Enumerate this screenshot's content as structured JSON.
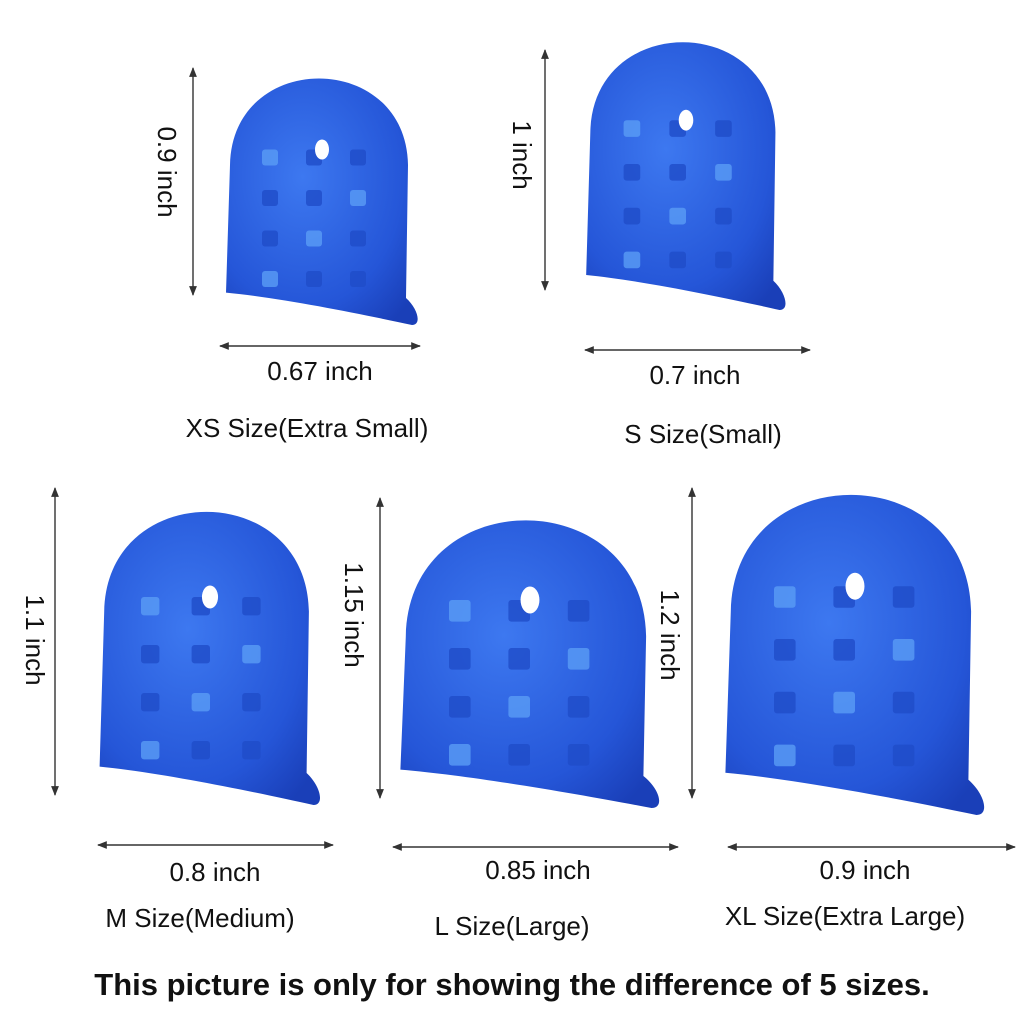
{
  "items": [
    {
      "height": "0.9 inch",
      "width": "0.67 inch",
      "label": "XS Size(Extra Small)"
    },
    {
      "height": "1 inch",
      "width": "0.7 inch",
      "label": "S Size(Small)"
    },
    {
      "height": "1.1 inch",
      "width": "0.8 inch",
      "label": "M Size(Medium)"
    },
    {
      "height": "1.15 inch",
      "width": "0.85 inch",
      "label": "L Size(Large)"
    },
    {
      "height": "1.2 inch",
      "width": "0.9 inch",
      "label": "XL Size(Extra Large)"
    }
  ],
  "note": "This picture is only for showing the difference of 5 sizes."
}
